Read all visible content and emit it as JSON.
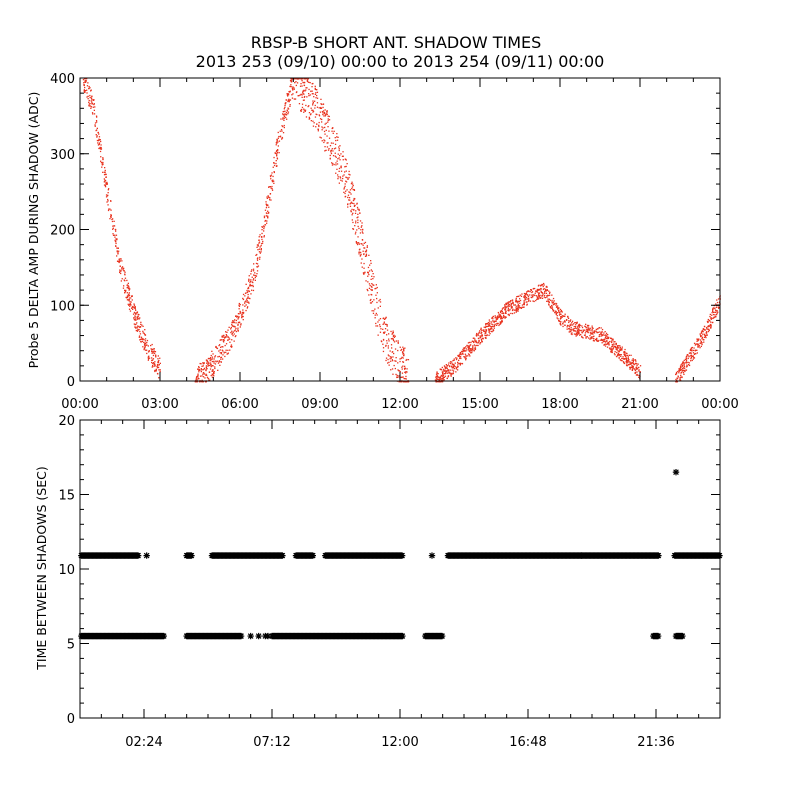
{
  "title": {
    "line1": "RBSP-B SHORT ANT. SHADOW TIMES",
    "line2": "2013 253 (09/10) 00:00 to 2013 254 (09/11) 00:00"
  },
  "colors": {
    "top_points": "#e8321e",
    "bottom_points": "#000000",
    "axes": "#000000"
  },
  "chart_data": [
    {
      "type": "scatter",
      "name": "delta_amp",
      "ylabel": "Probe 5 DELTA AMP DURING SHADOW (ADC)",
      "xlabel": "",
      "x_unit": "hours since 2013-09-10 00:00",
      "xlim": [
        0,
        24
      ],
      "ylim": [
        0,
        400
      ],
      "grid": false,
      "x_ticks": [
        {
          "value": 0,
          "label": "00:00"
        },
        {
          "value": 3,
          "label": "03:00"
        },
        {
          "value": 6,
          "label": "06:00"
        },
        {
          "value": 9,
          "label": "09:00"
        },
        {
          "value": 12,
          "label": "12:00"
        },
        {
          "value": 15,
          "label": "15:00"
        },
        {
          "value": 18,
          "label": "18:00"
        },
        {
          "value": 21,
          "label": "21:00"
        },
        {
          "value": 24,
          "label": "00:00"
        }
      ],
      "y_ticks": [
        {
          "value": 0,
          "label": "0"
        },
        {
          "value": 100,
          "label": "100"
        },
        {
          "value": 200,
          "label": "200"
        },
        {
          "value": 300,
          "label": "300"
        },
        {
          "value": 400,
          "label": "400"
        }
      ],
      "segments": [
        {
          "points": [
            [
              0.1,
              400
            ],
            [
              0.5,
              360
            ],
            [
              1.0,
              250
            ],
            [
              1.5,
              150
            ],
            [
              2.0,
              90
            ],
            [
              2.5,
              45
            ],
            [
              3.0,
              15
            ]
          ],
          "spread": 15
        },
        {
          "points": [
            [
              4.3,
              0
            ],
            [
              5.0,
              25
            ],
            [
              5.8,
              70
            ],
            [
              6.5,
              140
            ],
            [
              7.0,
              230
            ],
            [
              7.5,
              330
            ],
            [
              8.0,
              400
            ]
          ],
          "spread": 18
        },
        {
          "points": [
            [
              8.0,
              400
            ],
            [
              8.8,
              360
            ],
            [
              9.5,
              310
            ],
            [
              10.0,
              260
            ],
            [
              10.5,
              190
            ],
            [
              11.0,
              110
            ],
            [
              11.5,
              50
            ],
            [
              12.0,
              20
            ],
            [
              12.3,
              10
            ]
          ],
          "spread": 30
        },
        {
          "points": [
            [
              13.3,
              2
            ],
            [
              14.0,
              20
            ],
            [
              15.0,
              60
            ],
            [
              16.0,
              95
            ],
            [
              17.0,
              115
            ],
            [
              17.4,
              120
            ],
            [
              18.0,
              85
            ],
            [
              18.5,
              70
            ],
            [
              19.0,
              65
            ],
            [
              19.5,
              62
            ],
            [
              20.0,
              45
            ],
            [
              20.5,
              30
            ],
            [
              21.0,
              12
            ]
          ],
          "spread": 10
        },
        {
          "points": [
            [
              22.3,
              0
            ],
            [
              23.0,
              40
            ],
            [
              23.5,
              70
            ],
            [
              24.0,
              110
            ]
          ],
          "spread": 10
        }
      ]
    },
    {
      "type": "scatter",
      "name": "time_between_shadows",
      "ylabel": "TIME BETWEEN SHADOWS (SEC)",
      "xlabel": "",
      "x_unit": "hours since 2013-09-10 00:00",
      "xlim": [
        0,
        24
      ],
      "ylim": [
        0,
        20
      ],
      "grid": false,
      "marker": "*",
      "x_ticks": [
        {
          "value": 2.4,
          "label": "02:24"
        },
        {
          "value": 7.2,
          "label": "07:12"
        },
        {
          "value": 12.0,
          "label": "12:00"
        },
        {
          "value": 16.8,
          "label": "16:48"
        },
        {
          "value": 21.6,
          "label": "21:36"
        }
      ],
      "y_ticks": [
        {
          "value": 0,
          "label": "0"
        },
        {
          "value": 5,
          "label": "5"
        },
        {
          "value": 10,
          "label": "10"
        },
        {
          "value": 15,
          "label": "15"
        },
        {
          "value": 20,
          "label": "20"
        }
      ],
      "series": [
        {
          "value": 10.9,
          "ranges": [
            [
              0.05,
              2.2
            ],
            [
              4.0,
              4.2
            ],
            [
              4.95,
              7.6
            ],
            [
              8.1,
              8.75
            ],
            [
              9.2,
              12.1
            ],
            [
              13.8,
              21.7
            ],
            [
              22.3,
              24.0
            ]
          ],
          "points": [
            2.5,
            13.2,
            18.8
          ]
        },
        {
          "value": 5.5,
          "ranges": [
            [
              0.05,
              3.15
            ],
            [
              4.0,
              6.05
            ],
            [
              7.2,
              12.1
            ],
            [
              12.95,
              13.6
            ],
            [
              21.5,
              21.7
            ],
            [
              22.35,
              22.6
            ]
          ],
          "points": [
            6.4,
            6.7,
            6.95,
            7.05
          ]
        }
      ],
      "extra_points": [
        [
          22.35,
          16.5
        ]
      ]
    }
  ]
}
